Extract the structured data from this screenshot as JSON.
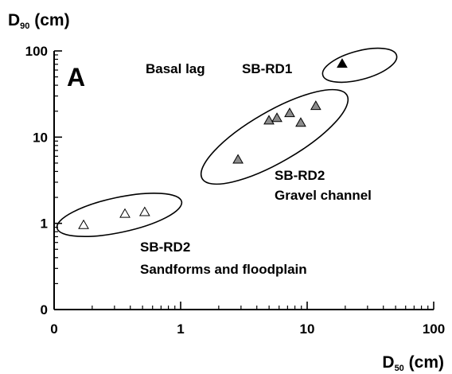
{
  "chart_data": {
    "type": "scatter",
    "ylabel": {
      "main": "D",
      "sub": "90",
      "unit": " (cm)"
    },
    "xlabel": {
      "main": "D",
      "sub": "50",
      "unit": " (cm)"
    },
    "xscale": "log",
    "yscale": "log",
    "xlim": [
      0.1,
      100
    ],
    "ylim": [
      0.1,
      100
    ],
    "xticks": [
      {
        "value": 0.1,
        "label": "0"
      },
      1,
      10,
      100
    ],
    "yticks": [
      {
        "value": 0.1,
        "label": "0"
      },
      1,
      10,
      100
    ],
    "minor_ticks": true,
    "series": [
      {
        "color": "#ffffff",
        "x": [
          0.171,
          0.363,
          0.52
        ],
        "values": [
          0.957,
          1.29,
          1.35
        ]
      },
      {
        "color": "#8c8c8c",
        "x": [
          2.84,
          4.99,
          5.77,
          7.27,
          8.9,
          11.7
        ],
        "values": [
          5.5,
          15.6,
          16.7,
          19,
          14.7,
          23
        ]
      },
      {
        "color": "#000000",
        "x": [
          18.9
        ],
        "values": [
          71
        ]
      }
    ],
    "annotations": [
      "A",
      "Basal lag",
      "SB-RD1",
      "SB-RD2",
      "Gravel channel",
      "SB-RD2",
      "Sandforms and floodplain"
    ]
  }
}
